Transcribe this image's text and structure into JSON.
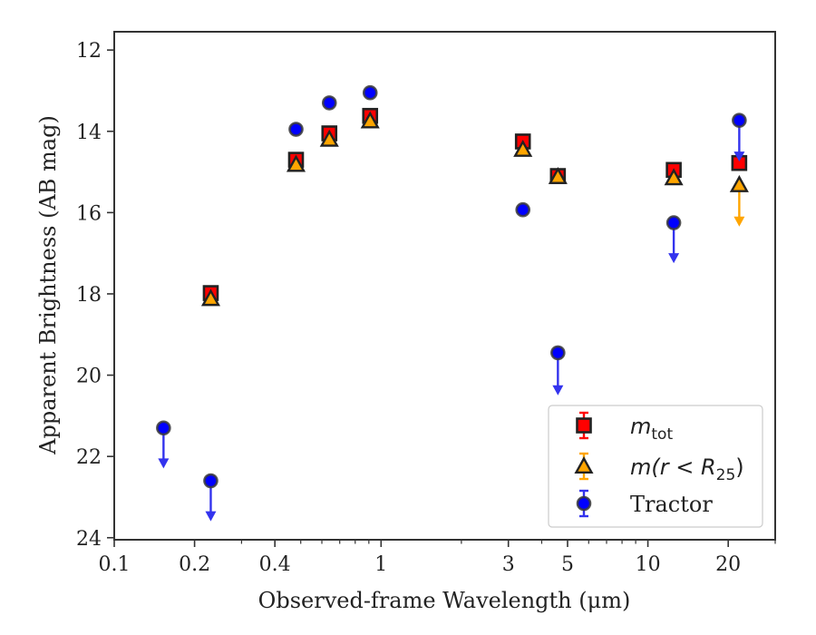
{
  "chart_data": {
    "type": "scatter",
    "xlabel": "Observed-frame Wavelength (μm)",
    "ylabel": "Apparent Brightness (AB mag)",
    "xscale": "log",
    "xlim": [
      0.1,
      30
    ],
    "ylim": [
      24.05,
      11.55
    ],
    "y_inverted": true,
    "grid": false,
    "legend_position": "lower-right",
    "x_ticks": [
      {
        "value": 0.1,
        "label": "0.1"
      },
      {
        "value": 0.2,
        "label": "0.2"
      },
      {
        "value": 0.4,
        "label": "0.4"
      },
      {
        "value": 1,
        "label": "1"
      },
      {
        "value": 3,
        "label": "3"
      },
      {
        "value": 5,
        "label": "5"
      },
      {
        "value": 10,
        "label": "10"
      },
      {
        "value": 20,
        "label": "20"
      }
    ],
    "x_minor_ticks": [
      0.3,
      0.5,
      0.6,
      0.7,
      0.8,
      0.9,
      2,
      4,
      6,
      7,
      8,
      9,
      30
    ],
    "y_ticks": [
      {
        "value": 12,
        "label": "12"
      },
      {
        "value": 14,
        "label": "14"
      },
      {
        "value": 16,
        "label": "16"
      },
      {
        "value": 18,
        "label": "18"
      },
      {
        "value": 20,
        "label": "20"
      },
      {
        "value": 22,
        "label": "22"
      },
      {
        "value": 24,
        "label": "24"
      }
    ],
    "series": [
      {
        "name": "m_tot",
        "label_main": "m",
        "label_sub": "tot",
        "marker": "square",
        "color": "#ff0000",
        "points": [
          {
            "x": 0.23,
            "y": 17.98
          },
          {
            "x": 0.48,
            "y": 14.7
          },
          {
            "x": 0.64,
            "y": 14.05
          },
          {
            "x": 0.91,
            "y": 13.62
          },
          {
            "x": 3.4,
            "y": 14.25
          },
          {
            "x": 4.6,
            "y": 15.1
          },
          {
            "x": 12.5,
            "y": 14.95
          },
          {
            "x": 22.0,
            "y": 14.78
          }
        ]
      },
      {
        "name": "m(r < R_25)",
        "label_text": "m(r < R",
        "label_sub": "25",
        "label_tail": ")",
        "marker": "triangle",
        "color": "#ffa500",
        "points": [
          {
            "x": 0.23,
            "y": 18.12
          },
          {
            "x": 0.48,
            "y": 14.82
          },
          {
            "x": 0.64,
            "y": 14.2
          },
          {
            "x": 0.91,
            "y": 13.75
          },
          {
            "x": 3.4,
            "y": 14.45
          },
          {
            "x": 4.6,
            "y": 15.12
          },
          {
            "x": 12.5,
            "y": 15.15
          },
          {
            "x": 22.0,
            "y": 15.32,
            "upper_limit": true,
            "arrow_to": 16.3
          }
        ]
      },
      {
        "name": "Tractor",
        "marker": "circle",
        "color": "#0000ff",
        "points": [
          {
            "x": 0.153,
            "y": 21.3,
            "upper_limit": true,
            "arrow_to": 22.25
          },
          {
            "x": 0.23,
            "y": 22.6,
            "upper_limit": true,
            "arrow_to": 23.55
          },
          {
            "x": 0.48,
            "y": 13.95
          },
          {
            "x": 0.64,
            "y": 13.3
          },
          {
            "x": 0.91,
            "y": 13.05
          },
          {
            "x": 3.4,
            "y": 15.93
          },
          {
            "x": 4.6,
            "y": 19.45,
            "upper_limit": true,
            "arrow_to": 20.45
          },
          {
            "x": 12.5,
            "y": 16.25,
            "upper_limit": true,
            "arrow_to": 17.2
          },
          {
            "x": 22.0,
            "y": 13.73,
            "upper_limit": true,
            "arrow_to": 14.7
          }
        ]
      }
    ]
  }
}
